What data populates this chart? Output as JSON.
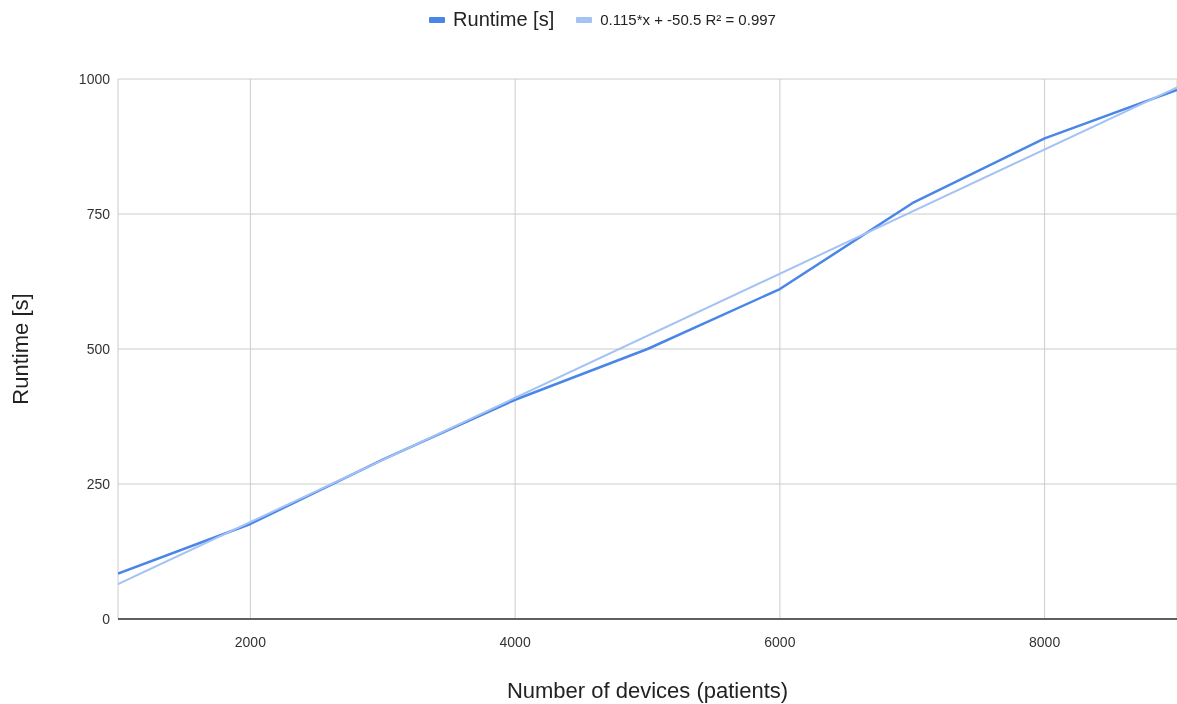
{
  "chart_data": {
    "type": "line",
    "xlabel": "Number of devices (patients)",
    "ylabel": "Runtime [s]",
    "x": [
      1000,
      2000,
      3000,
      4000,
      5000,
      6000,
      7000,
      8000,
      9000
    ],
    "series": [
      {
        "name": "Runtime [s]",
        "color": "#4a86e8",
        "values": [
          84,
          176,
          295,
          406,
          500,
          611,
          770,
          890,
          980
        ]
      },
      {
        "name": "0.115*x + -50.5 R² = 0.997",
        "type": "line",
        "color": "#a4c2f4",
        "x": [
          1000,
          9000
        ],
        "values": [
          64.5,
          984.5
        ]
      }
    ],
    "xlim": [
      1000,
      9000
    ],
    "xticks": [
      2000,
      4000,
      6000,
      8000
    ],
    "ylim": [
      0,
      1000
    ],
    "yticks": [
      0,
      250,
      500,
      750,
      1000
    ],
    "grid": true,
    "legend": "top",
    "marker": "none",
    "line_style": "solid"
  }
}
